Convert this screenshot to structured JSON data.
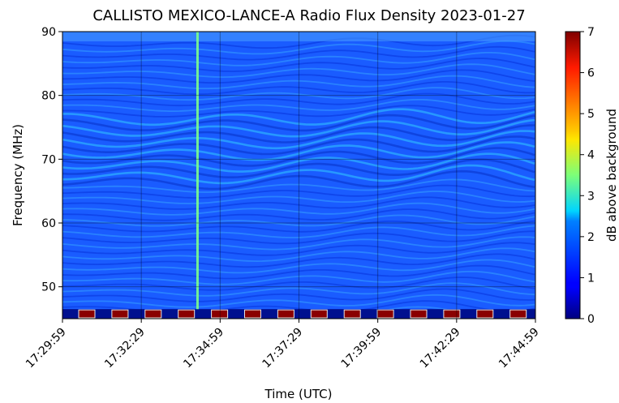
{
  "chart_data": {
    "type": "heatmap",
    "title": "CALLISTO MEXICO-LANCE-A Radio Flux Density 2023-01-27",
    "xlabel": "Time (UTC)",
    "ylabel": "Frequency (MHz)",
    "x_ticks": [
      "17:29:59",
      "17:32:29",
      "17:34:59",
      "17:37:29",
      "17:39:59",
      "17:42:29",
      "17:44:59"
    ],
    "x_range_seconds": [
      0,
      900
    ],
    "y_ticks": [
      50,
      60,
      70,
      80,
      90
    ],
    "ylim": [
      45,
      90
    ],
    "colorbar": {
      "label": "dB above background",
      "ticks": [
        0,
        1,
        2,
        3,
        4,
        5,
        6,
        7
      ],
      "range": [
        0,
        7
      ],
      "colormap": "jet"
    },
    "grid": true,
    "background_level_db": 1.3,
    "features": {
      "burst": {
        "time_seconds": 257,
        "freq_from": 46.5,
        "freq_to": 90,
        "db": 3.2
      },
      "calibration_band": {
        "freq_from": 45,
        "freq_to": 46.5
      }
    }
  }
}
